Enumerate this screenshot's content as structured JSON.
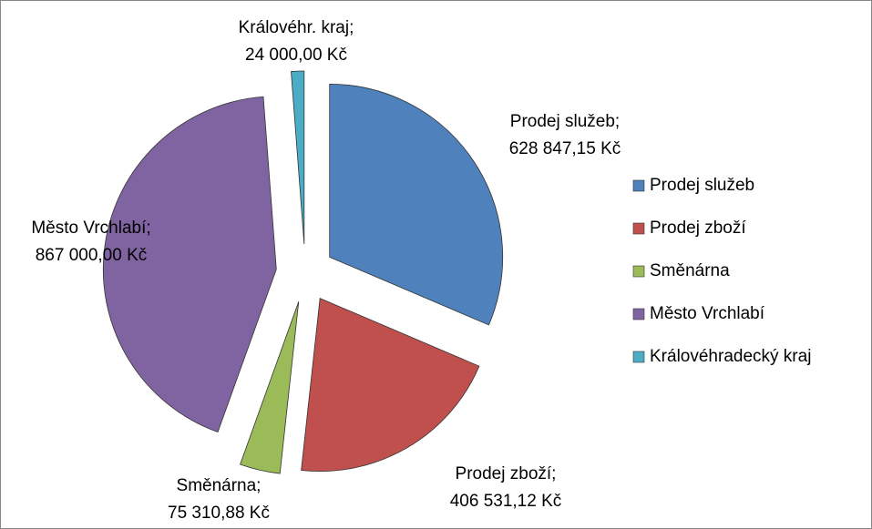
{
  "chart_data": {
    "type": "pie",
    "categories": [
      "Prodej služeb",
      "Prodej zboží",
      "Směnárna",
      "Město Vrchlabí",
      "Královéhradecký kraj"
    ],
    "values": [
      628847.15,
      406531.12,
      75310.88,
      867000.0,
      24000.0
    ],
    "label_names": [
      "Prodej služeb;",
      "Prodej zboží;",
      "Směnárna;",
      "Město Vrchlabí;",
      "Královéhr. kraj;"
    ],
    "value_labels": [
      "628 847,15 Kč",
      "406 531,12 Kč",
      "75 310,88 Kč",
      "867 000,00 Kč",
      "24 000,00 Kč"
    ],
    "colors": [
      "#4f81bd",
      "#c0504d",
      "#9bbb59",
      "#8064a2",
      "#4bacc6"
    ],
    "legend": "right"
  }
}
